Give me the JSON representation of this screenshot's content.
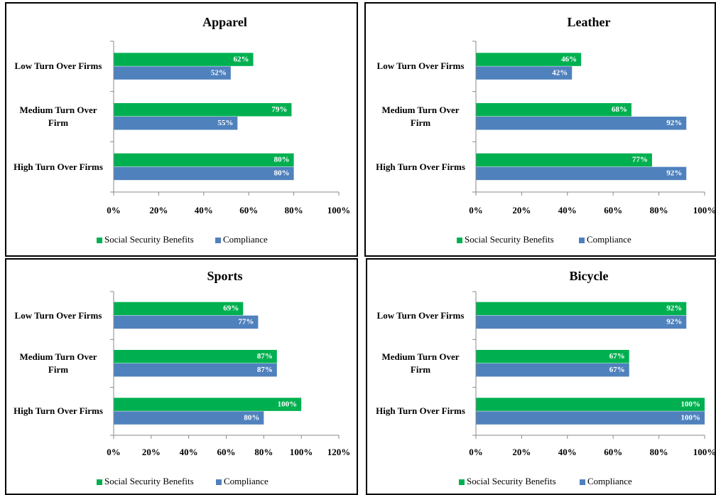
{
  "chart_data": [
    {
      "type": "bar",
      "orientation": "horizontal",
      "title": "Apparel",
      "categories": [
        "Low Turn Over Firms",
        "Medium Turn Over Firm",
        "High Turn Over Firms"
      ],
      "series": [
        {
          "name": "Social Security Benefits",
          "color": "#00b050",
          "values": [
            62,
            79,
            80
          ],
          "value_labels": [
            "62%",
            "79%",
            "80%"
          ]
        },
        {
          "name": "Compliance",
          "color": "#4f81bd",
          "values": [
            52,
            55,
            80
          ],
          "value_labels": [
            "52%",
            "55%",
            "80%"
          ]
        }
      ],
      "xlim": [
        0,
        100
      ],
      "xticks": [
        {
          "value": 0,
          "label": "0%"
        },
        {
          "value": 20,
          "label": "20%"
        },
        {
          "value": 40,
          "label": "40%"
        },
        {
          "value": 60,
          "label": "60%"
        },
        {
          "value": 80,
          "label": "80%"
        },
        {
          "value": 100,
          "label": "100%"
        }
      ],
      "legend": "bottom"
    },
    {
      "type": "bar",
      "orientation": "horizontal",
      "title": "Leather",
      "categories": [
        "Low Turn Over Firms",
        "Medium Turn Over Firm",
        "High Turn Over Firms"
      ],
      "series": [
        {
          "name": "Social Security Benefits",
          "color": "#00b050",
          "values": [
            46,
            68,
            77
          ],
          "value_labels": [
            "46%",
            "68%",
            "77%"
          ]
        },
        {
          "name": "Compliance",
          "color": "#4f81bd",
          "values": [
            42,
            92,
            92
          ],
          "value_labels": [
            "42%",
            "92%",
            "92%"
          ]
        }
      ],
      "xlim": [
        0,
        100
      ],
      "xticks": [
        {
          "value": 0,
          "label": "0%"
        },
        {
          "value": 20,
          "label": "20%"
        },
        {
          "value": 40,
          "label": "40%"
        },
        {
          "value": 60,
          "label": "60%"
        },
        {
          "value": 80,
          "label": "80%"
        },
        {
          "value": 100,
          "label": "100%"
        }
      ],
      "legend": "bottom"
    },
    {
      "type": "bar",
      "orientation": "horizontal",
      "title": "Sports",
      "categories": [
        "Low Turn Over Firms",
        "Medium Turn Over Firm",
        "High Turn Over Firms"
      ],
      "series": [
        {
          "name": "Social Security Benefits",
          "color": "#00b050",
          "values": [
            69,
            87,
            100
          ],
          "value_labels": [
            "69%",
            "87%",
            "100%"
          ]
        },
        {
          "name": "Compliance",
          "color": "#4f81bd",
          "values": [
            77,
            87,
            80
          ],
          "value_labels": [
            "77%",
            "87%",
            "80%"
          ]
        }
      ],
      "xlim": [
        0,
        120
      ],
      "xticks": [
        {
          "value": 0,
          "label": "0%"
        },
        {
          "value": 20,
          "label": "20%"
        },
        {
          "value": 40,
          "label": "40%"
        },
        {
          "value": 60,
          "label": "60%"
        },
        {
          "value": 80,
          "label": "80%"
        },
        {
          "value": 100,
          "label": "100%"
        },
        {
          "value": 120,
          "label": "120%"
        }
      ],
      "legend": "bottom"
    },
    {
      "type": "bar",
      "orientation": "horizontal",
      "title": "Bicycle",
      "categories": [
        "Low Turn Over Firms",
        "Medium Turn Over Firm",
        "High Turn Over Firms"
      ],
      "series": [
        {
          "name": "Social Security Benefits",
          "color": "#00b050",
          "values": [
            92,
            67,
            100
          ],
          "value_labels": [
            "92%",
            "67%",
            "100%"
          ]
        },
        {
          "name": "Compliance",
          "color": "#4f81bd",
          "values": [
            92,
            67,
            100
          ],
          "value_labels": [
            "92%",
            "67%",
            "100%"
          ]
        }
      ],
      "xlim": [
        0,
        100
      ],
      "xticks": [
        {
          "value": 0,
          "label": "0%"
        },
        {
          "value": 20,
          "label": "20%"
        },
        {
          "value": 40,
          "label": "40%"
        },
        {
          "value": 60,
          "label": "60%"
        },
        {
          "value": 80,
          "label": "80%"
        },
        {
          "value": 100,
          "label": "100%"
        }
      ],
      "legend": "bottom"
    }
  ]
}
